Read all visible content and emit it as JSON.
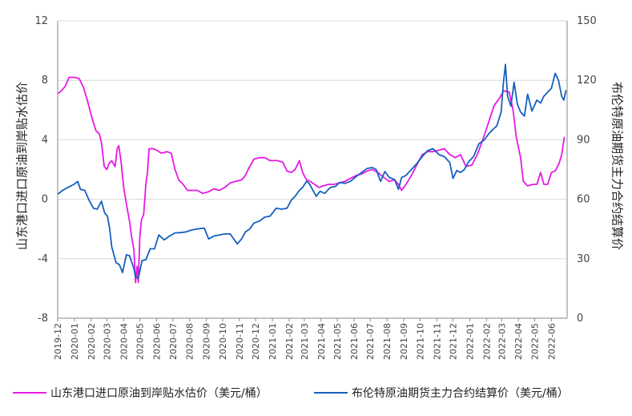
{
  "chart_data": {
    "type": "line",
    "y_left_label": "山东港口进口原油到岸贴水估价",
    "y_right_label": "布伦特原油期货主力合约结算价",
    "y_left_lim": [
      -8,
      12
    ],
    "y_left_ticks": [
      "-8",
      "-4",
      "0",
      "4",
      "8",
      "12"
    ],
    "y_right_lim": [
      0,
      150
    ],
    "y_right_ticks": [
      "0",
      "30",
      "60",
      "90",
      "120",
      "150"
    ],
    "x_ticks": [
      "2019-12",
      "2020-01",
      "2020-02",
      "2020-03",
      "2020-04",
      "2020-05",
      "2020-06",
      "2020-07",
      "2020-08",
      "2020-09",
      "2020-10",
      "2020-11",
      "2020-12",
      "2021-01",
      "2021-02",
      "2021-03",
      "2021-04",
      "2021-05",
      "2021-06",
      "2021-07",
      "2021-08",
      "2021-09",
      "2021-10",
      "2021-11",
      "2021-12",
      "2022-01",
      "2022-02",
      "2022-03",
      "2022-04",
      "2022-05",
      "2022-06"
    ],
    "grid": "horizontal",
    "legend_position": "bottom",
    "series": [
      {
        "name": "山东港口进口原油到岸贴水估价（美元/桶）",
        "axis": "left",
        "color": "#e619e6",
        "points": [
          [
            "2019-12-01",
            7.1
          ],
          [
            "2019-12-08",
            7.3
          ],
          [
            "2019-12-15",
            7.6
          ],
          [
            "2019-12-22",
            8.2
          ],
          [
            "2020-01-01",
            8.2
          ],
          [
            "2020-01-10",
            8.1
          ],
          [
            "2020-01-18",
            7.5
          ],
          [
            "2020-01-26",
            6.5
          ],
          [
            "2020-02-03",
            5.4
          ],
          [
            "2020-02-10",
            4.6
          ],
          [
            "2020-02-16",
            4.4
          ],
          [
            "2020-02-20",
            3.8
          ],
          [
            "2020-02-25",
            2.2
          ],
          [
            "2020-03-01",
            2.0
          ],
          [
            "2020-03-05",
            2.4
          ],
          [
            "2020-03-10",
            2.6
          ],
          [
            "2020-03-16",
            2.2
          ],
          [
            "2020-03-20",
            3.4
          ],
          [
            "2020-03-23",
            3.6
          ],
          [
            "2020-03-27",
            2.6
          ],
          [
            "2020-04-01",
            0.8
          ],
          [
            "2020-04-07",
            -0.5
          ],
          [
            "2020-04-12",
            -1.5
          ],
          [
            "2020-04-16",
            -2.6
          ],
          [
            "2020-04-20",
            -3.4
          ],
          [
            "2020-04-23",
            -5.6
          ],
          [
            "2020-04-26",
            -4.5
          ],
          [
            "2020-04-28",
            -5.6
          ],
          [
            "2020-05-01",
            -2.5
          ],
          [
            "2020-05-04",
            -1.4
          ],
          [
            "2020-05-08",
            -1.0
          ],
          [
            "2020-05-12",
            1.0
          ],
          [
            "2020-05-15",
            1.8
          ],
          [
            "2020-05-18",
            3.4
          ],
          [
            "2020-05-25",
            3.4
          ],
          [
            "2020-06-01",
            3.3
          ],
          [
            "2020-06-10",
            3.1
          ],
          [
            "2020-06-20",
            3.2
          ],
          [
            "2020-06-28",
            3.1
          ],
          [
            "2020-07-05",
            2.0
          ],
          [
            "2020-07-12",
            1.3
          ],
          [
            "2020-07-20",
            1.0
          ],
          [
            "2020-07-28",
            0.6
          ],
          [
            "2020-08-05",
            0.6
          ],
          [
            "2020-08-15",
            0.6
          ],
          [
            "2020-08-25",
            0.4
          ],
          [
            "2020-09-05",
            0.5
          ],
          [
            "2020-09-15",
            0.7
          ],
          [
            "2020-09-25",
            0.6
          ],
          [
            "2020-10-05",
            0.8
          ],
          [
            "2020-10-15",
            1.1
          ],
          [
            "2020-10-25",
            1.2
          ],
          [
            "2020-11-05",
            1.3
          ],
          [
            "2020-11-12",
            1.6
          ],
          [
            "2020-11-20",
            2.2
          ],
          [
            "2020-11-28",
            2.7
          ],
          [
            "2020-12-08",
            2.8
          ],
          [
            "2020-12-18",
            2.8
          ],
          [
            "2020-12-28",
            2.6
          ],
          [
            "2021-01-10",
            2.6
          ],
          [
            "2021-01-20",
            2.5
          ],
          [
            "2021-01-28",
            1.9
          ],
          [
            "2021-02-05",
            1.8
          ],
          [
            "2021-02-12",
            2.0
          ],
          [
            "2021-02-20",
            2.6
          ],
          [
            "2021-02-26",
            1.8
          ],
          [
            "2021-03-05",
            1.3
          ],
          [
            "2021-03-12",
            1.2
          ],
          [
            "2021-03-20",
            1.0
          ],
          [
            "2021-03-28",
            0.8
          ],
          [
            "2021-04-05",
            0.9
          ],
          [
            "2021-04-15",
            1.0
          ],
          [
            "2021-04-25",
            1.0
          ],
          [
            "2021-05-05",
            1.1
          ],
          [
            "2021-05-15",
            1.2
          ],
          [
            "2021-05-25",
            1.4
          ],
          [
            "2021-06-05",
            1.6
          ],
          [
            "2021-06-15",
            1.7
          ],
          [
            "2021-06-25",
            1.9
          ],
          [
            "2021-07-05",
            2.0
          ],
          [
            "2021-07-15",
            1.8
          ],
          [
            "2021-07-25",
            1.5
          ],
          [
            "2021-08-05",
            1.2
          ],
          [
            "2021-08-15",
            1.3
          ],
          [
            "2021-08-22",
            1.0
          ],
          [
            "2021-08-28",
            0.6
          ],
          [
            "2021-09-05",
            1.0
          ],
          [
            "2021-09-15",
            1.6
          ],
          [
            "2021-09-25",
            2.3
          ],
          [
            "2021-10-05",
            3.0
          ],
          [
            "2021-10-15",
            3.2
          ],
          [
            "2021-10-25",
            3.2
          ],
          [
            "2021-11-05",
            3.3
          ],
          [
            "2021-11-15",
            3.4
          ],
          [
            "2021-11-25",
            3.0
          ],
          [
            "2021-12-05",
            2.8
          ],
          [
            "2021-12-15",
            3.0
          ],
          [
            "2021-12-25",
            2.2
          ],
          [
            "2022-01-05",
            2.3
          ],
          [
            "2022-01-15",
            3.0
          ],
          [
            "2022-01-25",
            4.0
          ],
          [
            "2022-02-05",
            5.2
          ],
          [
            "2022-02-15",
            6.3
          ],
          [
            "2022-02-25",
            6.8
          ],
          [
            "2022-03-05",
            7.3
          ],
          [
            "2022-03-15",
            7.2
          ],
          [
            "2022-03-22",
            6.0
          ],
          [
            "2022-03-28",
            4.2
          ],
          [
            "2022-04-05",
            2.8
          ],
          [
            "2022-04-10",
            1.2
          ],
          [
            "2022-04-18",
            0.9
          ],
          [
            "2022-04-28",
            1.0
          ],
          [
            "2022-05-05",
            1.0
          ],
          [
            "2022-05-12",
            1.8
          ],
          [
            "2022-05-18",
            1.0
          ],
          [
            "2022-05-25",
            1.0
          ],
          [
            "2022-06-01",
            1.8
          ],
          [
            "2022-06-08",
            1.9
          ],
          [
            "2022-06-15",
            2.4
          ],
          [
            "2022-06-20",
            3.0
          ],
          [
            "2022-06-25",
            4.2
          ]
        ]
      },
      {
        "name": "布伦特原油期货主力合约结算价（美元/桶）",
        "axis": "right",
        "color": "#1560bd",
        "points": [
          [
            "2019-12-01",
            62.5
          ],
          [
            "2019-12-10",
            64.5
          ],
          [
            "2019-12-20",
            66.0
          ],
          [
            "2019-12-31",
            67.5
          ],
          [
            "2020-01-07",
            69.0
          ],
          [
            "2020-01-12",
            65.0
          ],
          [
            "2020-01-20",
            64.5
          ],
          [
            "2020-01-28",
            59.5
          ],
          [
            "2020-02-05",
            55.5
          ],
          [
            "2020-02-12",
            55.0
          ],
          [
            "2020-02-20",
            59.0
          ],
          [
            "2020-02-26",
            53.0
          ],
          [
            "2020-03-02",
            51.5
          ],
          [
            "2020-03-06",
            45.5
          ],
          [
            "2020-03-10",
            36.0
          ],
          [
            "2020-03-18",
            28.0
          ],
          [
            "2020-03-24",
            27.0
          ],
          [
            "2020-03-30",
            23.0
          ],
          [
            "2020-04-06",
            32.0
          ],
          [
            "2020-04-12",
            31.5
          ],
          [
            "2020-04-20",
            25.0
          ],
          [
            "2020-04-23",
            21.0
          ],
          [
            "2020-04-28",
            20.0
          ],
          [
            "2020-05-05",
            29.0
          ],
          [
            "2020-05-12",
            29.5
          ],
          [
            "2020-05-20",
            35.0
          ],
          [
            "2020-05-28",
            35.0
          ],
          [
            "2020-06-05",
            42.0
          ],
          [
            "2020-06-15",
            39.5
          ],
          [
            "2020-06-25",
            41.5
          ],
          [
            "2020-07-05",
            43.0
          ],
          [
            "2020-07-15",
            43.2
          ],
          [
            "2020-07-25",
            43.5
          ],
          [
            "2020-08-05",
            44.5
          ],
          [
            "2020-08-15",
            45.0
          ],
          [
            "2020-08-28",
            45.5
          ],
          [
            "2020-09-05",
            40.0
          ],
          [
            "2020-09-15",
            41.5
          ],
          [
            "2020-09-25",
            42.0
          ],
          [
            "2020-10-05",
            42.5
          ],
          [
            "2020-10-15",
            42.5
          ],
          [
            "2020-10-28",
            37.5
          ],
          [
            "2020-11-05",
            40.0
          ],
          [
            "2020-11-12",
            43.5
          ],
          [
            "2020-11-20",
            45.0
          ],
          [
            "2020-11-28",
            48.0
          ],
          [
            "2020-12-08",
            49.0
          ],
          [
            "2020-12-18",
            51.0
          ],
          [
            "2020-12-28",
            51.5
          ],
          [
            "2021-01-08",
            55.5
          ],
          [
            "2021-01-18",
            55.0
          ],
          [
            "2021-01-28",
            55.5
          ],
          [
            "2021-02-05",
            59.5
          ],
          [
            "2021-02-12",
            61.5
          ],
          [
            "2021-02-20",
            64.5
          ],
          [
            "2021-02-26",
            66.0
          ],
          [
            "2021-03-05",
            69.0
          ],
          [
            "2021-03-10",
            68.0
          ],
          [
            "2021-03-18",
            64.0
          ],
          [
            "2021-03-23",
            61.5
          ],
          [
            "2021-03-30",
            64.0
          ],
          [
            "2021-04-08",
            63.0
          ],
          [
            "2021-04-18",
            66.0
          ],
          [
            "2021-04-28",
            66.5
          ],
          [
            "2021-05-05",
            68.5
          ],
          [
            "2021-05-15",
            68.0
          ],
          [
            "2021-05-25",
            69.0
          ],
          [
            "2021-06-05",
            71.5
          ],
          [
            "2021-06-15",
            73.5
          ],
          [
            "2021-06-25",
            75.5
          ],
          [
            "2021-07-05",
            76.0
          ],
          [
            "2021-07-12",
            75.0
          ],
          [
            "2021-07-20",
            69.0
          ],
          [
            "2021-07-28",
            74.0
          ],
          [
            "2021-08-05",
            71.0
          ],
          [
            "2021-08-15",
            70.0
          ],
          [
            "2021-08-22",
            65.0
          ],
          [
            "2021-08-28",
            71.0
          ],
          [
            "2021-09-05",
            72.0
          ],
          [
            "2021-09-15",
            75.0
          ],
          [
            "2021-09-25",
            78.0
          ],
          [
            "2021-10-05",
            81.5
          ],
          [
            "2021-10-15",
            84.5
          ],
          [
            "2021-10-25",
            85.5
          ],
          [
            "2021-11-05",
            82.5
          ],
          [
            "2021-11-15",
            81.5
          ],
          [
            "2021-11-25",
            78.5
          ],
          [
            "2021-12-01",
            70.5
          ],
          [
            "2021-12-08",
            74.5
          ],
          [
            "2021-12-15",
            73.5
          ],
          [
            "2021-12-22",
            75.0
          ],
          [
            "2021-12-30",
            79.0
          ],
          [
            "2022-01-08",
            81.5
          ],
          [
            "2022-01-18",
            88.0
          ],
          [
            "2022-01-28",
            90.0
          ],
          [
            "2022-02-05",
            93.0
          ],
          [
            "2022-02-12",
            95.0
          ],
          [
            "2022-02-20",
            97.0
          ],
          [
            "2022-02-28",
            104.0
          ],
          [
            "2022-03-04",
            118.0
          ],
          [
            "2022-03-08",
            128.0
          ],
          [
            "2022-03-12",
            112.0
          ],
          [
            "2022-03-18",
            107.0
          ],
          [
            "2022-03-24",
            119.0
          ],
          [
            "2022-03-30",
            108.0
          ],
          [
            "2022-04-05",
            104.0
          ],
          [
            "2022-04-12",
            102.0
          ],
          [
            "2022-04-18",
            113.0
          ],
          [
            "2022-04-26",
            104.5
          ],
          [
            "2022-05-05",
            110.0
          ],
          [
            "2022-05-12",
            108.5
          ],
          [
            "2022-05-18",
            112.0
          ],
          [
            "2022-05-25",
            114.0
          ],
          [
            "2022-06-01",
            116.0
          ],
          [
            "2022-06-08",
            123.5
          ],
          [
            "2022-06-14",
            120.0
          ],
          [
            "2022-06-20",
            112.0
          ],
          [
            "2022-06-24",
            110.0
          ],
          [
            "2022-06-28",
            115.0
          ]
        ]
      }
    ]
  }
}
